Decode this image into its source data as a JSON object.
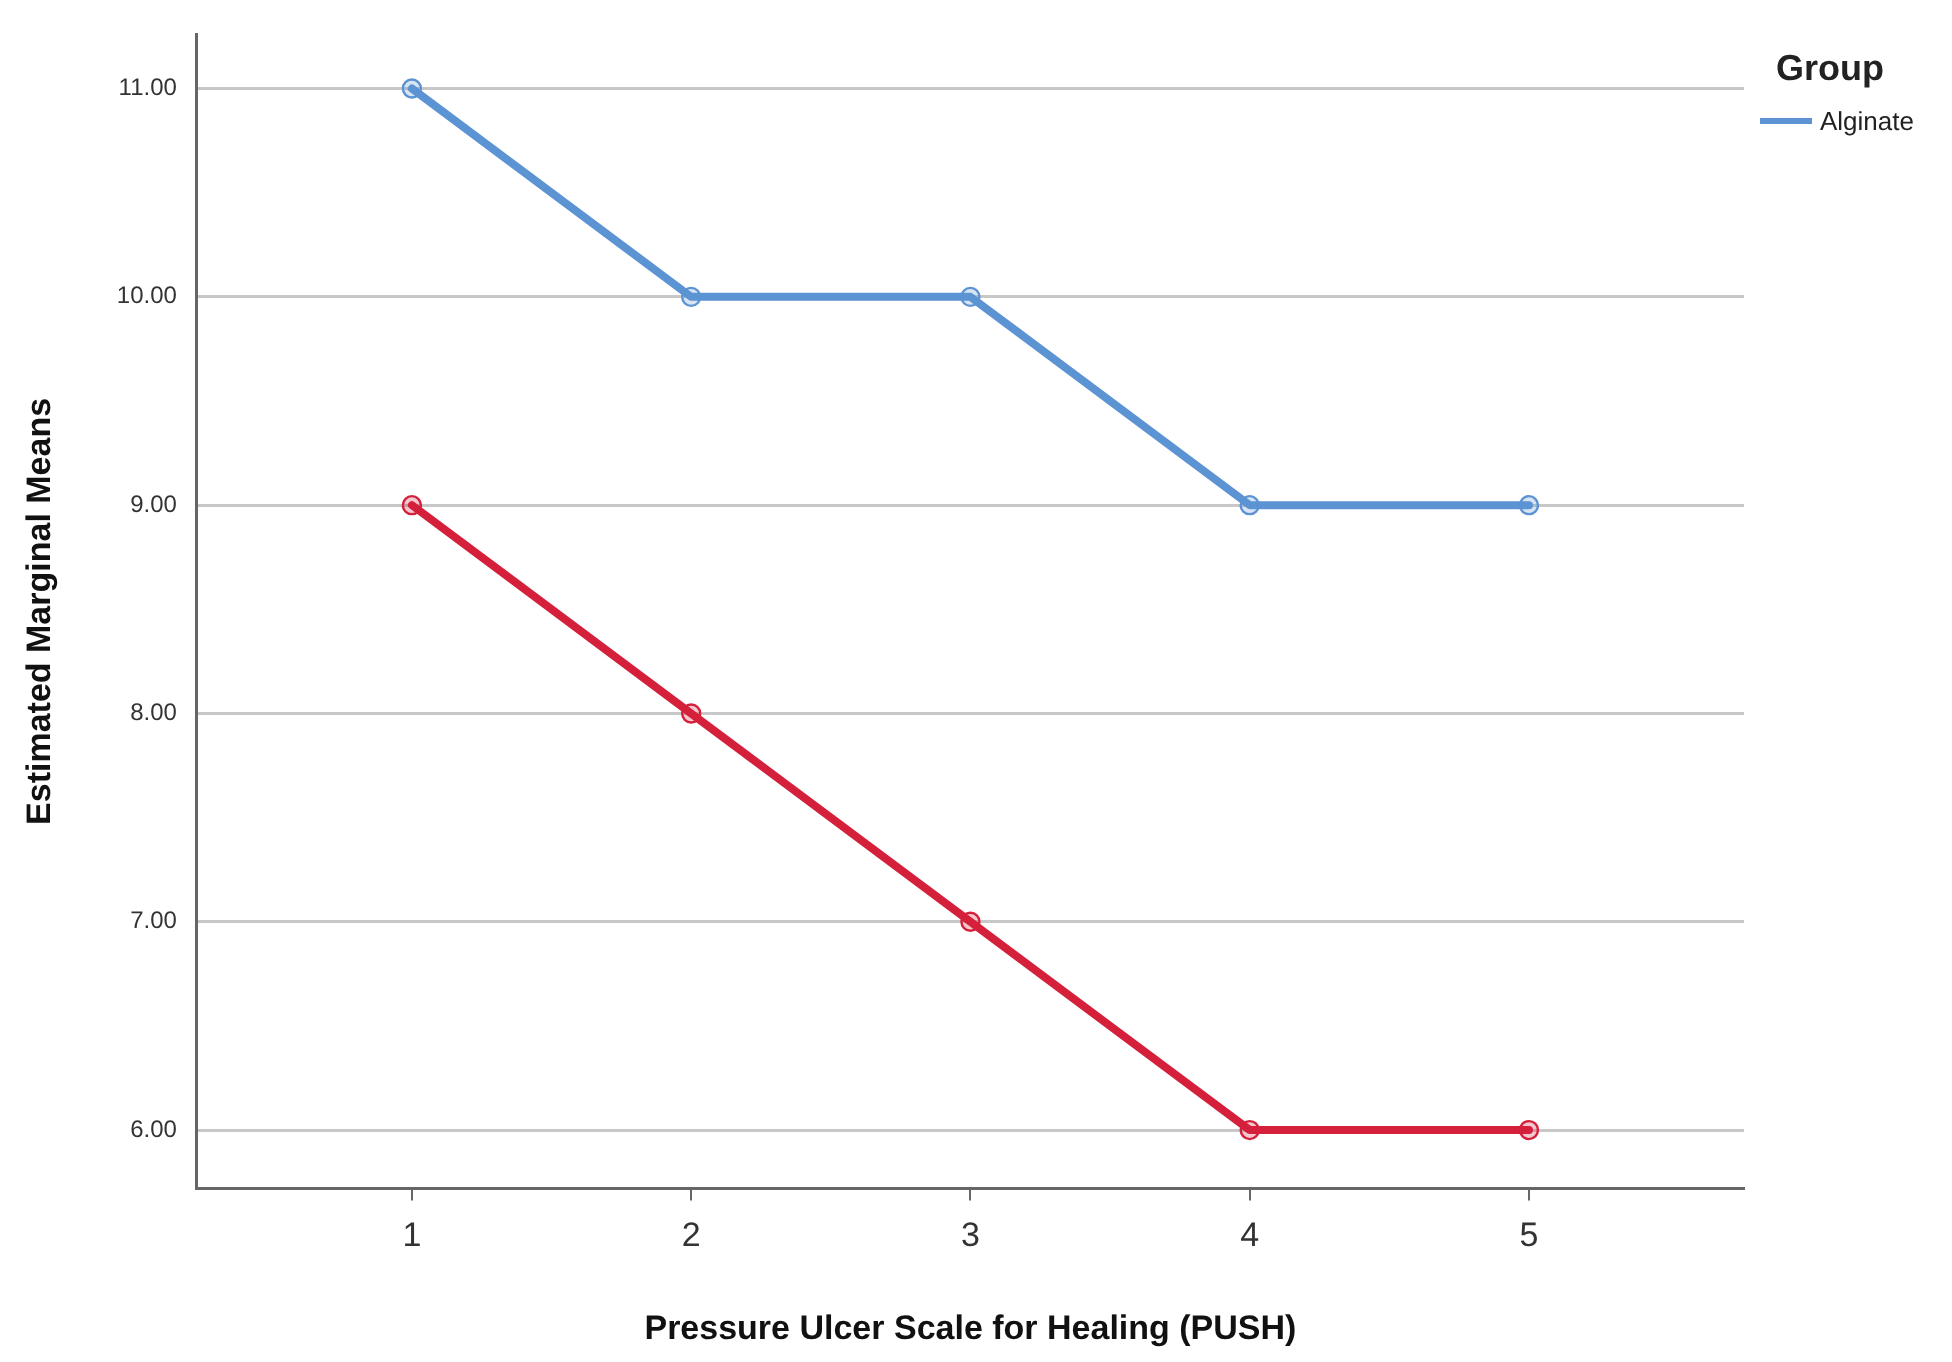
{
  "chart_data": {
    "type": "line",
    "xlabel": "Pressure Ulcer Scale for Healing (PUSH)",
    "ylabel": "Estimated Marginal Means",
    "legend_title": "Group",
    "x": [
      1,
      2,
      3,
      4,
      5
    ],
    "xlim": [
      0.23,
      5.77
    ],
    "xticks": [
      1,
      2,
      3,
      4,
      5
    ],
    "ylim": [
      5.72,
      11.26
    ],
    "yticks": [
      {
        "value": 6,
        "label": "6.00"
      },
      {
        "value": 7,
        "label": "7.00"
      },
      {
        "value": 8,
        "label": "8.00"
      },
      {
        "value": 9,
        "label": "9.00"
      },
      {
        "value": 10,
        "label": "10.00"
      },
      {
        "value": 11,
        "label": "11.00"
      }
    ],
    "series": [
      {
        "name": "Alginate",
        "color": "#5b93d3",
        "values": [
          11,
          10,
          10,
          9,
          9
        ]
      },
      {
        "color": "#d5203b",
        "values": [
          9,
          8,
          7,
          6,
          6
        ]
      }
    ],
    "grid": "y",
    "legend": "top right",
    "marker": "circle",
    "line_style": "solid"
  }
}
